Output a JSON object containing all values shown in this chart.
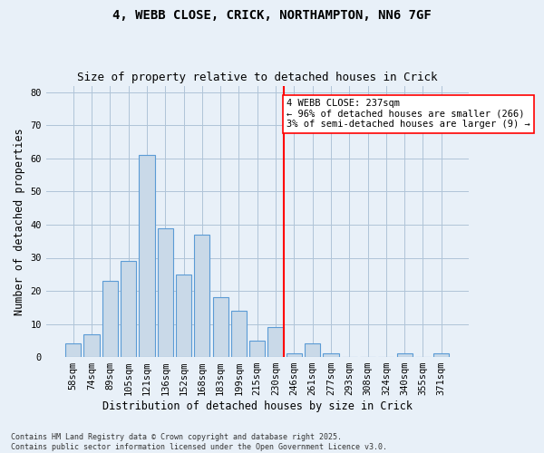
{
  "title1": "4, WEBB CLOSE, CRICK, NORTHAMPTON, NN6 7GF",
  "title2": "Size of property relative to detached houses in Crick",
  "xlabel": "Distribution of detached houses by size in Crick",
  "ylabel": "Number of detached properties",
  "categories": [
    "58sqm",
    "74sqm",
    "89sqm",
    "105sqm",
    "121sqm",
    "136sqm",
    "152sqm",
    "168sqm",
    "183sqm",
    "199sqm",
    "215sqm",
    "230sqm",
    "246sqm",
    "261sqm",
    "277sqm",
    "293sqm",
    "308sqm",
    "324sqm",
    "340sqm",
    "355sqm",
    "371sqm"
  ],
  "values": [
    4,
    7,
    23,
    29,
    61,
    39,
    25,
    37,
    18,
    14,
    5,
    9,
    1,
    4,
    1,
    0,
    0,
    0,
    1,
    0,
    1
  ],
  "bar_color": "#c9d9e8",
  "bar_edgecolor": "#5b9bd5",
  "bar_linewidth": 0.8,
  "vline_color": "red",
  "vline_linewidth": 1.5,
  "annotation_text": "4 WEBB CLOSE: 237sqm\n← 96% of detached houses are smaller (266)\n3% of semi-detached houses are larger (9) →",
  "annotation_box_color": "white",
  "annotation_box_edgecolor": "red",
  "ylim": [
    0,
    82
  ],
  "yticks": [
    0,
    10,
    20,
    30,
    40,
    50,
    60,
    70,
    80
  ],
  "grid_color": "#b0c4d8",
  "bg_color": "#e8f0f8",
  "footnote": "Contains HM Land Registry data © Crown copyright and database right 2025.\nContains public sector information licensed under the Open Government Licence v3.0.",
  "title_fontsize": 10,
  "subtitle_fontsize": 9,
  "axis_label_fontsize": 8.5,
  "tick_fontsize": 7.5,
  "annotation_fontsize": 7.5
}
